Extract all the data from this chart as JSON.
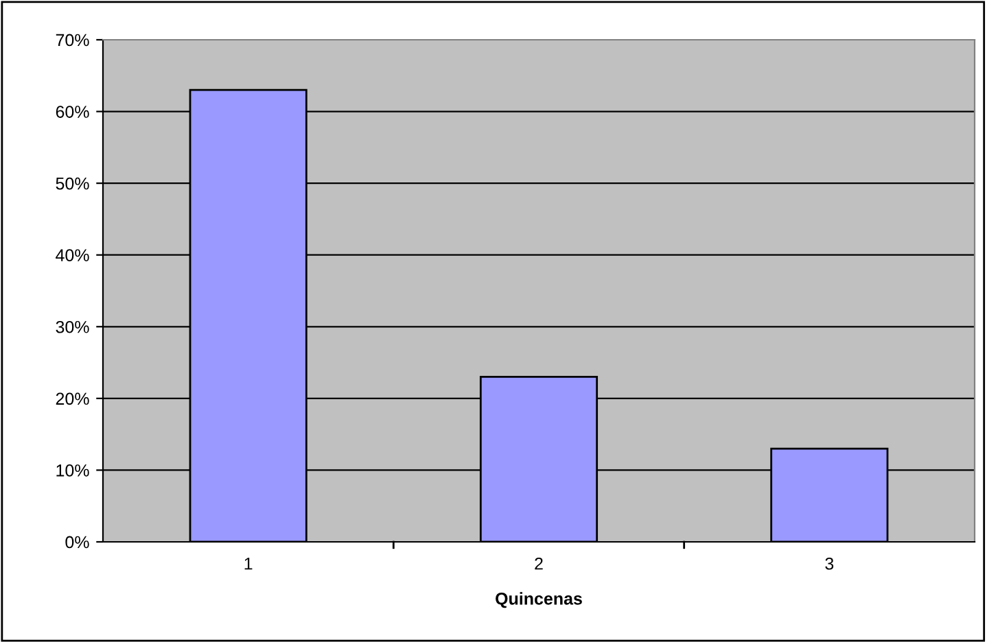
{
  "chart_data": {
    "type": "bar",
    "xlabel": "Quincenas",
    "categories": [
      "1",
      "2",
      "3"
    ],
    "values": [
      63,
      23,
      13
    ],
    "color": "#9999ff",
    "ylim": [
      0,
      70
    ],
    "yticks": [
      {
        "value": 0,
        "label": "0%"
      },
      {
        "value": 10,
        "label": "10%"
      },
      {
        "value": 20,
        "label": "20%"
      },
      {
        "value": 30,
        "label": "30%"
      },
      {
        "value": 40,
        "label": "40%"
      },
      {
        "value": 50,
        "label": "50%"
      },
      {
        "value": 60,
        "label": "60%"
      },
      {
        "value": 70,
        "label": "70%"
      }
    ],
    "grid": "y",
    "legend": false
  }
}
